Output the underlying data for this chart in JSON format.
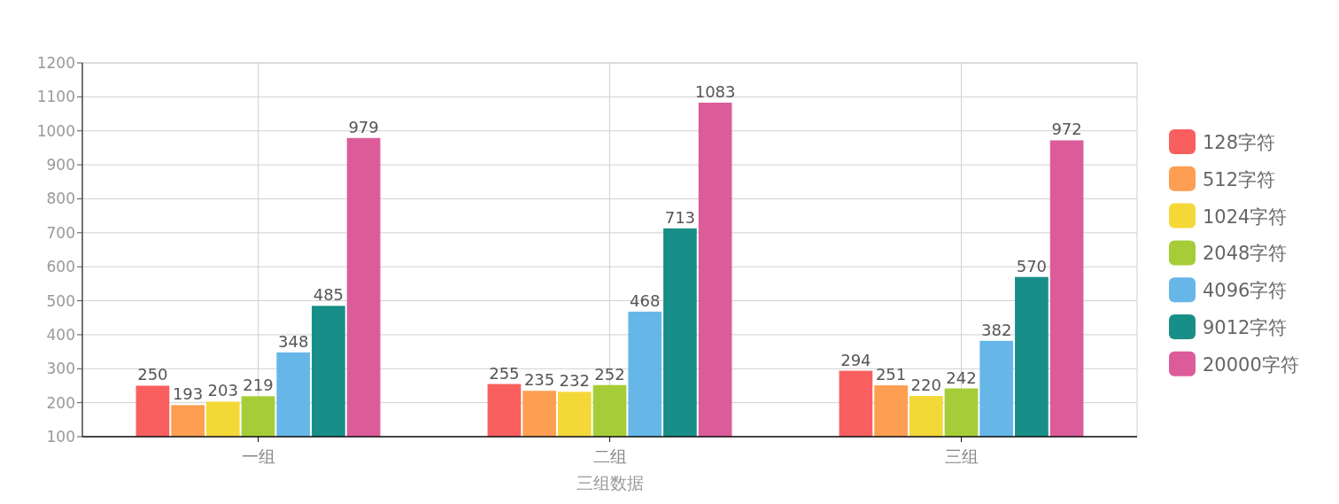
{
  "chart_data": {
    "type": "bar",
    "xlabel": "三组数据",
    "categories": [
      "一组",
      "二组",
      "三组"
    ],
    "series": [
      {
        "name": "128字符",
        "color": "#f95f5f",
        "values": [
          250,
          255,
          294
        ]
      },
      {
        "name": "512字符",
        "color": "#fd9e52",
        "values": [
          193,
          235,
          251
        ]
      },
      {
        "name": "1024字符",
        "color": "#f4d838",
        "values": [
          203,
          232,
          220
        ]
      },
      {
        "name": "2048字符",
        "color": "#a6cd38",
        "values": [
          219,
          252,
          242
        ]
      },
      {
        "name": "4096字符",
        "color": "#66b6e8",
        "values": [
          348,
          468,
          382
        ]
      },
      {
        "name": "9012字符",
        "color": "#178f88",
        "values": [
          485,
          713,
          570
        ]
      },
      {
        "name": "20000字符",
        "color": "#dc5c99",
        "values": [
          979,
          1083,
          972
        ]
      }
    ],
    "ylim": [
      100,
      1200
    ],
    "yticks": [
      100,
      200,
      300,
      400,
      500,
      600,
      700,
      800,
      900,
      1000,
      1100,
      1200
    ],
    "grid": true,
    "legend": "right",
    "data_labels": true
  }
}
